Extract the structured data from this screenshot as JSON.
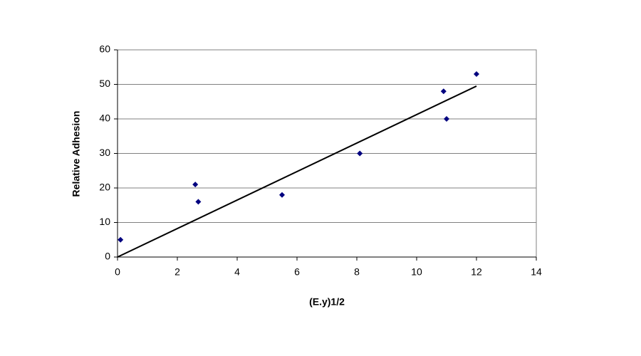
{
  "chart_data": {
    "type": "scatter",
    "x_label": "(E.y)1/2",
    "y_label": "Relative Adhesion",
    "series": [
      {
        "color": "#00007f",
        "x": [
          0.1,
          2.6,
          2.7,
          5.5,
          8.1,
          10.9,
          11,
          12
        ],
        "values": [
          5,
          21,
          16,
          18,
          30,
          48,
          40,
          53
        ]
      }
    ],
    "trendline": {
      "color": "#000000",
      "x": [
        0,
        12
      ],
      "values": [
        0,
        49.5
      ]
    },
    "xlim": [
      0,
      14
    ],
    "xticks": [
      0,
      2,
      4,
      6,
      8,
      10,
      12,
      14
    ],
    "ylim": [
      0,
      60
    ],
    "yticks": [
      0,
      10,
      20,
      30,
      40,
      50,
      60
    ],
    "grid": true
  }
}
